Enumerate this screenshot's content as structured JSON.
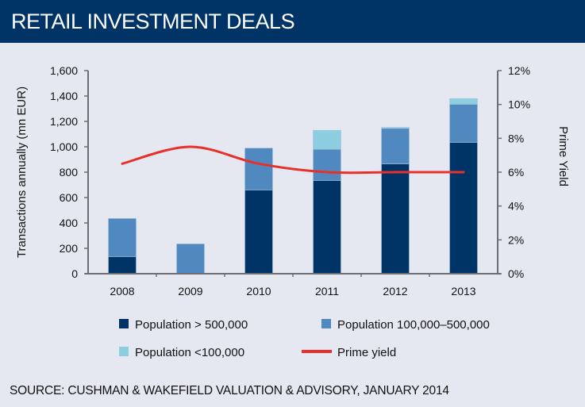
{
  "header": {
    "title": "RETAIL INVESTMENT DEALS"
  },
  "source": "SOURCE: CUSHMAN & WAKEFIELD VALUATION & ADVISORY,  JANUARY 2014",
  "colors": {
    "background": "#e6e8f1",
    "header": "#003466",
    "series_large": "#003466",
    "series_medium": "#4f89bf",
    "series_small": "#8ccde0",
    "prime_yield": "#e8302b",
    "axis": "#6d6d72"
  },
  "chart_data": {
    "type": "bar",
    "stacked": true,
    "title": "RETAIL INVESTMENT DEALS",
    "categories": [
      "2008",
      "2009",
      "2010",
      "2011",
      "2012",
      "2013"
    ],
    "series": [
      {
        "name": "Population > 500,000",
        "type": "bar",
        "axis": "left",
        "values": [
          135,
          0,
          660,
          735,
          865,
          1035
        ]
      },
      {
        "name": "Population 100,000–500,000",
        "type": "bar",
        "axis": "left",
        "values": [
          300,
          235,
          330,
          245,
          280,
          300
        ]
      },
      {
        "name": "Population <100,000",
        "type": "bar",
        "axis": "left",
        "values": [
          0,
          0,
          0,
          150,
          8,
          45
        ]
      },
      {
        "name": "Prime yield",
        "type": "line",
        "axis": "right",
        "values": [
          6.5,
          7.5,
          6.5,
          6.0,
          6.0,
          6.0
        ]
      }
    ],
    "left_axis": {
      "label": "Transactions annually (mn EUR)",
      "range": [
        0,
        1600
      ],
      "ticks": [
        0,
        200,
        400,
        600,
        800,
        1000,
        1200,
        1400,
        1600
      ],
      "tick_labels": [
        "0",
        "200",
        "400",
        "600",
        "800",
        "1,000",
        "1,200",
        "1,400",
        "1,600"
      ]
    },
    "right_axis": {
      "label": "Prime Yield",
      "range": [
        0,
        12
      ],
      "ticks": [
        0,
        2,
        4,
        6,
        8,
        10,
        12
      ],
      "tick_labels": [
        "0%",
        "2%",
        "4%",
        "6%",
        "8%",
        "10%",
        "12%"
      ]
    },
    "xlabel": "",
    "grid": false,
    "legend": {
      "placement": "bottom",
      "entries": [
        {
          "label": "Population > 500,000",
          "kind": "box",
          "color_key": "series_large"
        },
        {
          "label": "Population 100,000–500,000",
          "kind": "box",
          "color_key": "series_medium"
        },
        {
          "label": "Population <100,000",
          "kind": "box",
          "color_key": "series_small"
        },
        {
          "label": "Prime yield",
          "kind": "line",
          "color_key": "prime_yield"
        }
      ]
    }
  }
}
